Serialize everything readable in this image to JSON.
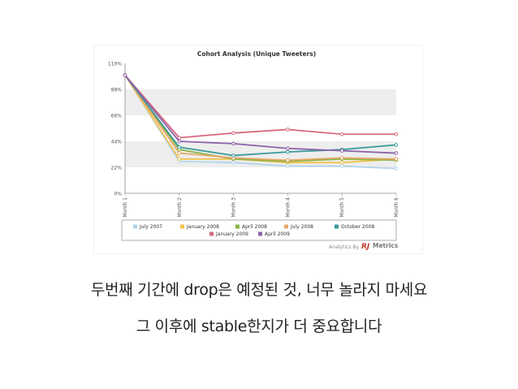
{
  "caption": {
    "line1": "두번째 기간에 drop은 예정된 것, 너무 놀라지 마세요",
    "line2": "그 이후에 stable한지가 더 중요합니다"
  },
  "footer": {
    "prefix": "Analytics By",
    "brand_rj": "RJ",
    "brand_metrics": "Metrics"
  },
  "chart_data": {
    "type": "line",
    "title": "Cohort Analysis (Unique Tweeters)",
    "xlabel": "",
    "ylabel": "",
    "categories": [
      "Month 1",
      "Month 2",
      "Month 3",
      "Month 4",
      "Month 5",
      "Month 6"
    ],
    "yticks": [
      "110%",
      "88%",
      "66%",
      "44%",
      "22%",
      "0%"
    ],
    "ytick_values": [
      110,
      88,
      66,
      44,
      22,
      0
    ],
    "ylim": [
      0,
      110
    ],
    "grid": "horizontal bands",
    "legend_position": "bottom",
    "series": [
      {
        "name": "July 2007",
        "color": "#b3d4ea",
        "values": [
          100,
          27,
          26,
          23,
          23,
          21
        ]
      },
      {
        "name": "January 2008",
        "color": "#f2c24b",
        "values": [
          100,
          29,
          29,
          26,
          26,
          29
        ]
      },
      {
        "name": "April 2008",
        "color": "#8ab446",
        "values": [
          100,
          37,
          29,
          27,
          29,
          28
        ]
      },
      {
        "name": "July 2008",
        "color": "#e8a96a",
        "values": [
          100,
          34,
          30,
          28,
          30,
          29
        ]
      },
      {
        "name": "October 2008",
        "color": "#3b9a9a",
        "values": [
          100,
          39,
          32,
          35,
          37,
          41
        ]
      },
      {
        "name": "January 2009",
        "color": "#d66a80",
        "values": [
          100,
          47,
          51,
          54,
          50,
          50
        ]
      },
      {
        "name": "April 2009",
        "color": "#8c63a8",
        "values": [
          100,
          44,
          42,
          38,
          36,
          34
        ]
      }
    ]
  }
}
